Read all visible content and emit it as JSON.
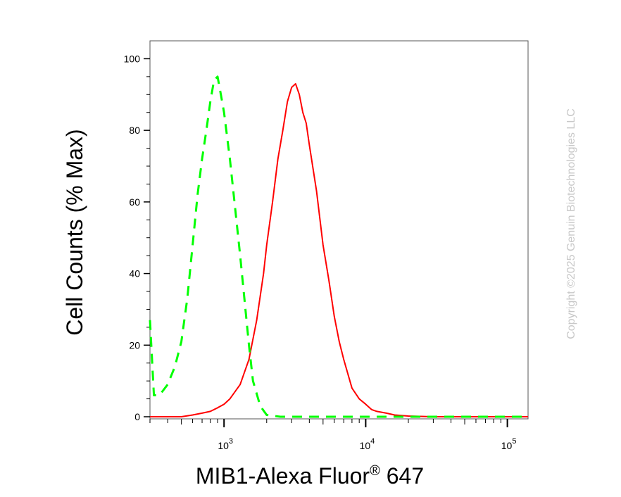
{
  "chart_data": {
    "type": "line",
    "xlabel": {
      "main": "MIB1-Alexa Fluor",
      "sup": "®",
      "tail": " 647"
    },
    "ylabel": "Cell Counts (% Max)",
    "x_scale": "log",
    "xlim": [
      300,
      140000
    ],
    "ylim": [
      0,
      105
    ],
    "y_ticks": [
      {
        "value": 0,
        "label": "0"
      },
      {
        "value": 20,
        "label": "20"
      },
      {
        "value": 40,
        "label": "40"
      },
      {
        "value": 60,
        "label": "60"
      },
      {
        "value": 80,
        "label": "80"
      },
      {
        "value": 100,
        "label": "100"
      }
    ],
    "x_ticks": [
      {
        "value": 1000,
        "base": "10",
        "exp": "3"
      },
      {
        "value": 10000,
        "base": "10",
        "exp": "4"
      },
      {
        "value": 100000,
        "base": "10",
        "exp": "5"
      }
    ],
    "grid": false,
    "series": [
      {
        "color": "#ff0000",
        "dash": "solid",
        "points": [
          [
            300,
            0
          ],
          [
            500,
            0
          ],
          [
            600,
            0.5
          ],
          [
            700,
            1
          ],
          [
            800,
            1.5
          ],
          [
            900,
            2.5
          ],
          [
            1000,
            3.5
          ],
          [
            1100,
            5
          ],
          [
            1300,
            9
          ],
          [
            1500,
            16
          ],
          [
            1700,
            27
          ],
          [
            1900,
            40
          ],
          [
            2000,
            48
          ],
          [
            2200,
            60
          ],
          [
            2400,
            72
          ],
          [
            2600,
            80
          ],
          [
            2800,
            88
          ],
          [
            3000,
            92
          ],
          [
            3200,
            93
          ],
          [
            3400,
            90
          ],
          [
            3600,
            85
          ],
          [
            3800,
            82
          ],
          [
            4000,
            76
          ],
          [
            4500,
            63
          ],
          [
            5000,
            48
          ],
          [
            5500,
            38
          ],
          [
            6000,
            28
          ],
          [
            6500,
            21
          ],
          [
            7000,
            16
          ],
          [
            8000,
            8
          ],
          [
            9000,
            5
          ],
          [
            10000,
            3.5
          ],
          [
            11000,
            2
          ],
          [
            12000,
            1.5
          ],
          [
            14000,
            1
          ],
          [
            16000,
            0.5
          ],
          [
            20000,
            0.2
          ],
          [
            30000,
            0
          ],
          [
            140000,
            0
          ]
        ]
      },
      {
        "color": "#00ff00",
        "dash": "dashed",
        "points": [
          [
            300,
            27
          ],
          [
            320,
            6
          ],
          [
            350,
            6
          ],
          [
            400,
            9
          ],
          [
            450,
            14
          ],
          [
            500,
            21
          ],
          [
            550,
            33
          ],
          [
            600,
            48
          ],
          [
            650,
            62
          ],
          [
            700,
            72
          ],
          [
            750,
            80
          ],
          [
            800,
            88
          ],
          [
            850,
            94
          ],
          [
            900,
            95
          ],
          [
            950,
            90
          ],
          [
            1000,
            85
          ],
          [
            1100,
            72
          ],
          [
            1200,
            58
          ],
          [
            1300,
            45
          ],
          [
            1400,
            32
          ],
          [
            1500,
            20
          ],
          [
            1600,
            10
          ],
          [
            1800,
            3
          ],
          [
            2000,
            0.5
          ],
          [
            2500,
            0
          ],
          [
            140000,
            0
          ]
        ]
      }
    ]
  },
  "copyright": "Copyright ©2025 Genuin Biotechnologies LLC"
}
